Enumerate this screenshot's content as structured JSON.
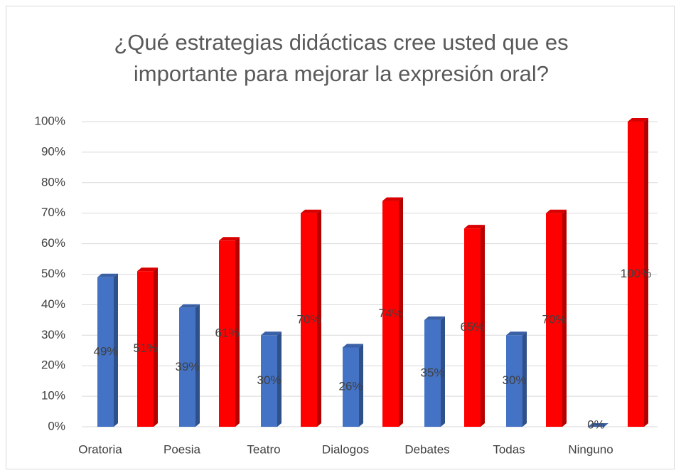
{
  "chart_data": {
    "type": "bar3d",
    "title": "¿Qué estrategias didácticas cree usted que es importante para mejorar la expresión oral?",
    "categories": [
      "Oratoria",
      "Poesia",
      "Teatro",
      "Dialogos",
      "Debates",
      "Todas",
      "Ninguno"
    ],
    "series": [
      {
        "color": "#4472c4",
        "values": [
          49,
          39,
          30,
          26,
          35,
          30,
          0
        ],
        "value_labels": [
          "49%",
          "39%",
          "30%",
          "26%",
          "35%",
          "30%",
          "0%"
        ]
      },
      {
        "color": "#ff0000",
        "values": [
          51,
          61,
          70,
          74,
          65,
          70,
          100
        ],
        "value_labels": [
          "51%",
          "61%",
          "70%",
          "74%",
          "65%",
          "70%",
          "100%"
        ]
      }
    ],
    "ylim": [
      0,
      100
    ],
    "yticks": [
      {
        "value": 0,
        "label": "0%"
      },
      {
        "value": 10,
        "label": "10%"
      },
      {
        "value": 20,
        "label": "20%"
      },
      {
        "value": 30,
        "label": "30%"
      },
      {
        "value": 40,
        "label": "40%"
      },
      {
        "value": 50,
        "label": "50%"
      },
      {
        "value": 60,
        "label": "60%"
      },
      {
        "value": 70,
        "label": "70%"
      },
      {
        "value": 80,
        "label": "80%"
      },
      {
        "value": 90,
        "label": "90%"
      },
      {
        "value": 100,
        "label": "100%"
      }
    ],
    "grid": true
  }
}
